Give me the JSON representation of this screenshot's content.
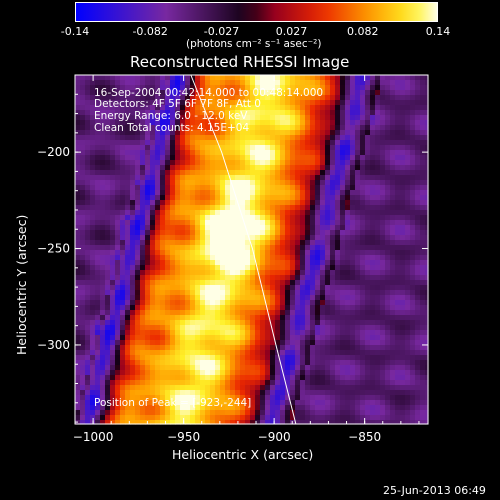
{
  "chart_data": {
    "type": "heatmap",
    "title": "Reconstructed RHESSI Image",
    "xlabel": "Heliocentric X (arcsec)",
    "ylabel": "Heliocentric Y (arcsec)",
    "xlim": [
      -1010,
      -815
    ],
    "ylim": [
      -341,
      -160
    ],
    "x_ticks": [
      -1000,
      -950,
      -900,
      -850
    ],
    "y_ticks": [
      -200,
      -250,
      -300
    ],
    "colorbar": {
      "range": [
        -0.14,
        0.14
      ],
      "ticks": [
        "-0.14",
        "-0.082",
        "-0.027",
        "0.027",
        "0.082",
        "0.14"
      ],
      "unit_label": "(photons cm⁻² s⁻¹ asec⁻²)"
    },
    "annotations": {
      "time": "16-Sep-2004 00:42:14.000 to 00:48:14.000",
      "detectors": "Detectors: 4F 5F 6F 7F 8F, Att 0",
      "energy": "Energy Range: 6.0 - 12.0 keV",
      "clean": "Clean    Total counts: 4.15E+04",
      "peak": "Position of Peak = [-923,-244]"
    },
    "peak": [
      -923,
      -244
    ],
    "limb_curve": [
      [
        -946,
        -160
      ],
      [
        -929,
        -200
      ],
      [
        -912,
        -250
      ],
      [
        -899,
        -300
      ],
      [
        -888,
        -341
      ]
    ],
    "timestamp": "25-Jun-2013 06:49"
  }
}
